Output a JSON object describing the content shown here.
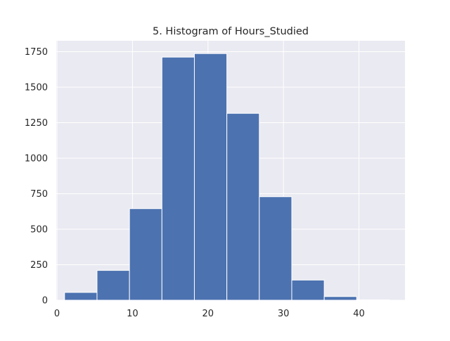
{
  "chart_data": {
    "type": "bar",
    "title": "5. Histogram of Hours_Studied",
    "xlabel": "",
    "ylabel": "",
    "xlim": [
      -0.1,
      46.1
    ],
    "ylim": [
      0,
      1827
    ],
    "x_ticks": [
      0,
      10,
      20,
      30,
      40
    ],
    "y_ticks": [
      0,
      250,
      500,
      750,
      1000,
      1250,
      1500,
      1750
    ],
    "bin_edges": [
      1,
      5.3,
      9.6,
      13.9,
      18.2,
      22.5,
      26.8,
      31.1,
      35.4,
      39.7,
      44
    ],
    "values": [
      55,
      210,
      645,
      1712,
      1737,
      1316,
      729,
      142,
      26,
      3
    ],
    "grid": true,
    "colors": {
      "bar": "#4c72b0",
      "bar_edge": "#ffffff",
      "plot_background": "#eaeaf2",
      "grid": "#ffffff",
      "text": "#262626"
    }
  }
}
